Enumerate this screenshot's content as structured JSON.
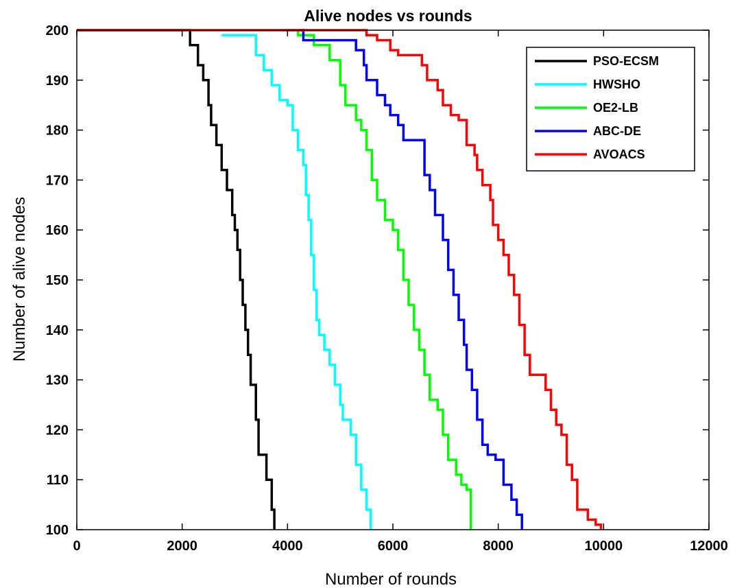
{
  "chart_data": {
    "type": "line",
    "title": "Alive nodes vs rounds",
    "xlabel": "Number of rounds",
    "ylabel": "Number of alive nodes",
    "xlim": [
      0,
      12000
    ],
    "ylim": [
      100,
      200
    ],
    "xticks": [
      0,
      2000,
      4000,
      6000,
      8000,
      10000,
      12000
    ],
    "yticks": [
      100,
      110,
      120,
      130,
      140,
      150,
      160,
      170,
      180,
      190,
      200
    ],
    "grid": false,
    "legend_position": "top-right",
    "series": [
      {
        "name": "PSO-ECSM",
        "color": "#000000",
        "points": [
          [
            0,
            200
          ],
          [
            2100,
            200
          ],
          [
            2150,
            197
          ],
          [
            2300,
            193
          ],
          [
            2400,
            190
          ],
          [
            2500,
            185
          ],
          [
            2550,
            181
          ],
          [
            2650,
            177
          ],
          [
            2750,
            172
          ],
          [
            2850,
            168
          ],
          [
            2950,
            163
          ],
          [
            3000,
            160
          ],
          [
            3050,
            156
          ],
          [
            3100,
            150
          ],
          [
            3150,
            145
          ],
          [
            3200,
            140
          ],
          [
            3250,
            135
          ],
          [
            3300,
            129
          ],
          [
            3400,
            122
          ],
          [
            3450,
            115
          ],
          [
            3550,
            115
          ],
          [
            3600,
            110
          ],
          [
            3700,
            104
          ],
          [
            3750,
            100
          ]
        ]
      },
      {
        "name": "HWSHO",
        "color": "#00ffff",
        "points": [
          [
            2750,
            199
          ],
          [
            3000,
            199
          ],
          [
            3300,
            199
          ],
          [
            3400,
            195
          ],
          [
            3550,
            192
          ],
          [
            3700,
            189
          ],
          [
            3850,
            186
          ],
          [
            4000,
            185
          ],
          [
            4100,
            180
          ],
          [
            4200,
            176
          ],
          [
            4300,
            173
          ],
          [
            4350,
            167
          ],
          [
            4400,
            162
          ],
          [
            4450,
            155
          ],
          [
            4500,
            148
          ],
          [
            4550,
            142
          ],
          [
            4600,
            139
          ],
          [
            4700,
            136
          ],
          [
            4800,
            133
          ],
          [
            4900,
            129
          ],
          [
            5000,
            125
          ],
          [
            5050,
            122
          ],
          [
            5200,
            119
          ],
          [
            5300,
            113
          ],
          [
            5400,
            108
          ],
          [
            5500,
            104
          ],
          [
            5580,
            100
          ]
        ]
      },
      {
        "name": "OE2-LB",
        "color": "#00ff00",
        "points": [
          [
            3900,
            200
          ],
          [
            4200,
            199
          ],
          [
            4500,
            197
          ],
          [
            4800,
            194
          ],
          [
            5000,
            189
          ],
          [
            5100,
            185
          ],
          [
            5300,
            182
          ],
          [
            5400,
            180
          ],
          [
            5500,
            176
          ],
          [
            5600,
            170
          ],
          [
            5700,
            166
          ],
          [
            5850,
            162
          ],
          [
            6000,
            160
          ],
          [
            6100,
            156
          ],
          [
            6200,
            150
          ],
          [
            6300,
            145
          ],
          [
            6400,
            140
          ],
          [
            6500,
            136
          ],
          [
            6600,
            131
          ],
          [
            6700,
            126
          ],
          [
            6850,
            124
          ],
          [
            6950,
            119
          ],
          [
            7050,
            114
          ],
          [
            7200,
            111
          ],
          [
            7300,
            109
          ],
          [
            7400,
            108
          ],
          [
            7480,
            100
          ]
        ]
      },
      {
        "name": "ABC-DE",
        "color": "#0000ff",
        "points": [
          [
            4200,
            200
          ],
          [
            4300,
            198
          ],
          [
            4900,
            198
          ],
          [
            5300,
            196
          ],
          [
            5450,
            193
          ],
          [
            5500,
            190
          ],
          [
            5700,
            187
          ],
          [
            5850,
            185
          ],
          [
            5950,
            183
          ],
          [
            6100,
            181
          ],
          [
            6200,
            178
          ],
          [
            6500,
            178
          ],
          [
            6600,
            171
          ],
          [
            6700,
            168
          ],
          [
            6800,
            163
          ],
          [
            6950,
            158
          ],
          [
            7050,
            152
          ],
          [
            7150,
            147
          ],
          [
            7250,
            142
          ],
          [
            7350,
            137
          ],
          [
            7400,
            132
          ],
          [
            7500,
            128
          ],
          [
            7600,
            122
          ],
          [
            7700,
            117
          ],
          [
            7800,
            115
          ],
          [
            7950,
            114
          ],
          [
            8100,
            109
          ],
          [
            8250,
            106
          ],
          [
            8350,
            103
          ],
          [
            8450,
            100
          ]
        ]
      },
      {
        "name": "AVOACS",
        "color": "#ff0000",
        "points": [
          [
            0,
            200
          ],
          [
            5200,
            200
          ],
          [
            5500,
            199
          ],
          [
            5700,
            198
          ],
          [
            5950,
            196
          ],
          [
            6100,
            195
          ],
          [
            6400,
            195
          ],
          [
            6550,
            193
          ],
          [
            6650,
            190
          ],
          [
            6850,
            188
          ],
          [
            6950,
            185
          ],
          [
            7100,
            183
          ],
          [
            7250,
            182
          ],
          [
            7400,
            177
          ],
          [
            7550,
            175
          ],
          [
            7600,
            172
          ],
          [
            7700,
            169
          ],
          [
            7850,
            166
          ],
          [
            7900,
            161
          ],
          [
            8000,
            158
          ],
          [
            8100,
            155
          ],
          [
            8200,
            151
          ],
          [
            8300,
            147
          ],
          [
            8400,
            141
          ],
          [
            8500,
            135
          ],
          [
            8600,
            131
          ],
          [
            8800,
            131
          ],
          [
            8900,
            128
          ],
          [
            9000,
            124
          ],
          [
            9100,
            121
          ],
          [
            9200,
            119
          ],
          [
            9300,
            113
          ],
          [
            9400,
            110
          ],
          [
            9500,
            104
          ],
          [
            9600,
            104
          ],
          [
            9700,
            102
          ],
          [
            9850,
            101
          ],
          [
            9950,
            100
          ]
        ]
      }
    ]
  }
}
